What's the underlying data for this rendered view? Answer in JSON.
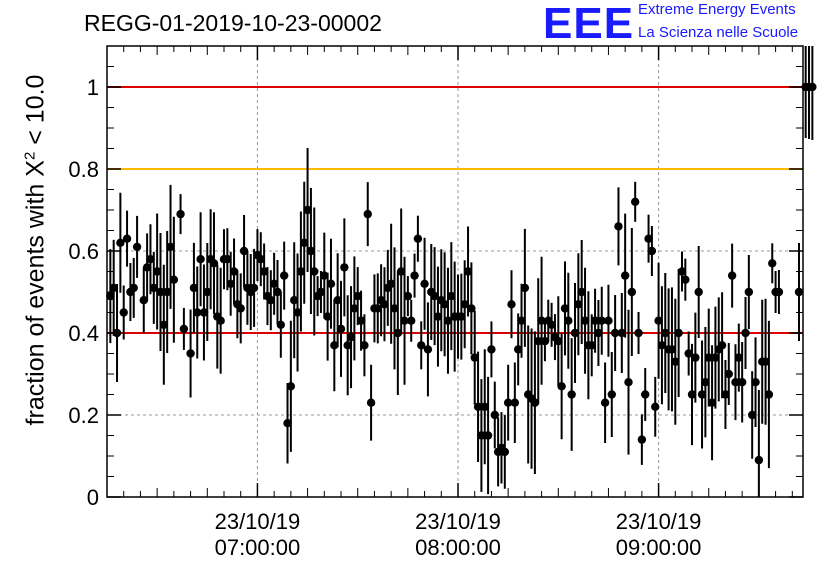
{
  "title": "REGG-01-2019-10-23-00002",
  "logo": {
    "mark": "EEE",
    "line1": "Extreme Energy Events",
    "line2": "La Scienza nelle Scuole"
  },
  "colors": {
    "threshold_red": "#dd0000",
    "threshold_orange": "#ffbb00",
    "points": "#000000",
    "grid": "#999999"
  },
  "chart_data": {
    "type": "scatter",
    "ylabel_main": "fraction of events with Χ",
    "ylabel_sup": "2",
    "ylabel_tail": " < 10.0",
    "ylim": [
      0,
      1.1
    ],
    "yticks": [
      0,
      0.2,
      0.4,
      0.6,
      0.8,
      1
    ],
    "ytick_labels": [
      "0",
      "0.2",
      "0.4",
      "0.6",
      "0.8",
      "1"
    ],
    "xlim_hours": [
      6.25,
      9.72
    ],
    "xticks": [
      {
        "h": 7,
        "date": "23/10/19",
        "time": "07:00:00"
      },
      {
        "h": 8,
        "date": "23/10/19",
        "time": "08:00:00"
      },
      {
        "h": 9,
        "date": "23/10/19",
        "time": "09:00:00"
      }
    ],
    "hlines": [
      {
        "y": 1.0,
        "color": "#dd0000"
      },
      {
        "y": 0.8,
        "color": "#ffbb00"
      },
      {
        "y": 0.4,
        "color": "#dd0000"
      }
    ],
    "grid": true,
    "points_hhmm_y": [
      [
        "06:16",
        0.49
      ],
      [
        "06:17",
        0.51
      ],
      [
        "06:18",
        0.4
      ],
      [
        "06:19",
        0.62
      ],
      [
        "06:20",
        0.45
      ],
      [
        "06:21",
        0.63
      ],
      [
        "06:22",
        0.5
      ],
      [
        "06:23",
        0.51
      ],
      [
        "06:24",
        0.61
      ],
      [
        "06:26",
        0.48
      ],
      [
        "06:27",
        0.56
      ],
      [
        "06:28",
        0.58
      ],
      [
        "06:29",
        0.51
      ],
      [
        "06:30",
        0.55
      ],
      [
        "06:31",
        0.5
      ],
      [
        "06:32",
        0.42
      ],
      [
        "06:33",
        0.5
      ],
      [
        "06:34",
        0.61
      ],
      [
        "06:35",
        0.53
      ],
      [
        "06:37",
        0.69
      ],
      [
        "06:38",
        0.41
      ],
      [
        "06:40",
        0.35
      ],
      [
        "06:41",
        0.51
      ],
      [
        "06:42",
        0.45
      ],
      [
        "06:43",
        0.58
      ],
      [
        "06:44",
        0.45
      ],
      [
        "06:45",
        0.5
      ],
      [
        "06:46",
        0.58
      ],
      [
        "06:47",
        0.57
      ],
      [
        "06:48",
        0.44
      ],
      [
        "06:49",
        0.43
      ],
      [
        "06:50",
        0.58
      ],
      [
        "06:51",
        0.58
      ],
      [
        "06:52",
        0.52
      ],
      [
        "06:53",
        0.55
      ],
      [
        "06:54",
        0.47
      ],
      [
        "06:55",
        0.46
      ],
      [
        "06:56",
        0.6
      ],
      [
        "06:57",
        0.51
      ],
      [
        "06:58",
        0.5
      ],
      [
        "06:59",
        0.51
      ],
      [
        "07:00",
        0.59
      ],
      [
        "07:01",
        0.58
      ],
      [
        "07:02",
        0.55
      ],
      [
        "07:03",
        0.49
      ],
      [
        "07:04",
        0.48
      ],
      [
        "07:05",
        0.52
      ],
      [
        "07:06",
        0.5
      ],
      [
        "07:07",
        0.42
      ],
      [
        "07:08",
        0.54
      ],
      [
        "07:09",
        0.18
      ],
      [
        "07:10",
        0.27
      ],
      [
        "07:11",
        0.48
      ],
      [
        "07:12",
        0.45
      ],
      [
        "07:13",
        0.55
      ],
      [
        "07:14",
        0.62
      ],
      [
        "07:15",
        0.7
      ],
      [
        "07:16",
        0.6
      ],
      [
        "07:17",
        0.55
      ],
      [
        "07:18",
        0.49
      ],
      [
        "07:19",
        0.5
      ],
      [
        "07:20",
        0.54
      ],
      [
        "07:21",
        0.44
      ],
      [
        "07:22",
        0.52
      ],
      [
        "07:23",
        0.37
      ],
      [
        "07:24",
        0.48
      ],
      [
        "07:25",
        0.41
      ],
      [
        "07:26",
        0.56
      ],
      [
        "07:27",
        0.37
      ],
      [
        "07:28",
        0.39
      ],
      [
        "07:29",
        0.46
      ],
      [
        "07:30",
        0.49
      ],
      [
        "07:31",
        0.43
      ],
      [
        "07:32",
        0.37
      ],
      [
        "07:33",
        0.69
      ],
      [
        "07:34",
        0.23
      ],
      [
        "07:35",
        0.46
      ],
      [
        "07:36",
        0.46
      ],
      [
        "07:37",
        0.48
      ],
      [
        "07:38",
        0.47
      ],
      [
        "07:39",
        0.51
      ],
      [
        "07:40",
        0.52
      ],
      [
        "07:41",
        0.46
      ],
      [
        "07:42",
        0.4
      ],
      [
        "07:43",
        0.55
      ],
      [
        "07:44",
        0.43
      ],
      [
        "07:45",
        0.49
      ],
      [
        "07:46",
        0.43
      ],
      [
        "07:47",
        0.54
      ],
      [
        "07:48",
        0.63
      ],
      [
        "07:49",
        0.37
      ],
      [
        "07:50",
        0.52
      ],
      [
        "07:51",
        0.36
      ],
      [
        "07:52",
        0.5
      ],
      [
        "07:53",
        0.49
      ],
      [
        "07:54",
        0.44
      ],
      [
        "07:55",
        0.48
      ],
      [
        "07:56",
        0.47
      ],
      [
        "07:57",
        0.43
      ],
      [
        "07:58",
        0.49
      ],
      [
        "07:59",
        0.44
      ],
      [
        "08:00",
        0.44
      ],
      [
        "08:01",
        0.44
      ],
      [
        "08:02",
        0.47
      ],
      [
        "08:03",
        0.55
      ],
      [
        "08:04",
        0.46
      ],
      [
        "08:05",
        0.34
      ],
      [
        "08:06",
        0.22
      ],
      [
        "08:07",
        0.15
      ],
      [
        "08:08",
        0.22
      ],
      [
        "08:09",
        0.15
      ],
      [
        "08:10",
        0.36
      ],
      [
        "08:11",
        0.2
      ],
      [
        "08:12",
        0.11
      ],
      [
        "08:13",
        0.12
      ],
      [
        "08:14",
        0.11
      ],
      [
        "08:15",
        0.23
      ],
      [
        "08:16",
        0.47
      ],
      [
        "08:17",
        0.23
      ],
      [
        "08:18",
        0.36
      ],
      [
        "08:19",
        0.43
      ],
      [
        "08:20",
        0.51
      ],
      [
        "08:21",
        0.25
      ],
      [
        "08:22",
        0.24
      ],
      [
        "08:23",
        0.23
      ],
      [
        "08:24",
        0.38
      ],
      [
        "08:25",
        0.43
      ],
      [
        "08:26",
        0.38
      ],
      [
        "08:27",
        0.43
      ],
      [
        "08:28",
        0.42
      ],
      [
        "08:29",
        0.39
      ],
      [
        "08:30",
        0.38
      ],
      [
        "08:31",
        0.27
      ],
      [
        "08:32",
        0.46
      ],
      [
        "08:33",
        0.43
      ],
      [
        "08:34",
        0.25
      ],
      [
        "08:35",
        0.4
      ],
      [
        "08:36",
        0.47
      ],
      [
        "08:37",
        0.5
      ],
      [
        "08:38",
        0.43
      ],
      [
        "08:39",
        0.37
      ],
      [
        "08:40",
        0.37
      ],
      [
        "08:41",
        0.43
      ],
      [
        "08:42",
        0.4
      ],
      [
        "08:43",
        0.43
      ],
      [
        "08:44",
        0.23
      ],
      [
        "08:45",
        0.43
      ],
      [
        "08:46",
        0.25
      ],
      [
        "08:47",
        0.4
      ],
      [
        "08:48",
        0.66
      ],
      [
        "08:49",
        0.4
      ],
      [
        "08:50",
        0.54
      ],
      [
        "08:51",
        0.28
      ],
      [
        "08:52",
        0.5
      ],
      [
        "08:53",
        0.72
      ],
      [
        "08:54",
        0.4
      ],
      [
        "08:55",
        0.14
      ],
      [
        "08:56",
        0.25
      ],
      [
        "08:57",
        0.63
      ],
      [
        "08:58",
        0.6
      ],
      [
        "08:59",
        0.22
      ],
      [
        "09:00",
        0.43
      ],
      [
        "09:01",
        0.37
      ],
      [
        "09:02",
        0.4
      ],
      [
        "09:03",
        0.36
      ],
      [
        "09:04",
        0.36
      ],
      [
        "09:05",
        0.33
      ],
      [
        "09:06",
        0.4
      ],
      [
        "09:07",
        0.55
      ],
      [
        "09:08",
        0.53
      ],
      [
        "09:09",
        0.35
      ],
      [
        "09:10",
        0.25
      ],
      [
        "09:11",
        0.34
      ],
      [
        "09:12",
        0.5
      ],
      [
        "09:13",
        0.25
      ],
      [
        "09:14",
        0.28
      ],
      [
        "09:15",
        0.34
      ],
      [
        "09:16",
        0.23
      ],
      [
        "09:17",
        0.34
      ],
      [
        "09:18",
        0.36
      ],
      [
        "09:19",
        0.37
      ],
      [
        "09:20",
        0.25
      ],
      [
        "09:21",
        0.3
      ],
      [
        "09:22",
        0.54
      ],
      [
        "09:23",
        0.28
      ],
      [
        "09:24",
        0.34
      ],
      [
        "09:25",
        0.28
      ],
      [
        "09:26",
        0.4
      ],
      [
        "09:27",
        0.5
      ],
      [
        "09:28",
        0.2
      ],
      [
        "09:29",
        0.28
      ],
      [
        "09:30",
        0.09
      ],
      [
        "09:31",
        0.33
      ],
      [
        "09:32",
        0.33
      ],
      [
        "09:33",
        0.25
      ],
      [
        "09:34",
        0.57
      ],
      [
        "09:35",
        0.5
      ],
      [
        "09:36",
        0.5
      ],
      [
        "09:42",
        0.5
      ],
      [
        "09:44",
        1.0
      ],
      [
        "09:45",
        1.0
      ],
      [
        "09:46",
        1.0
      ]
    ]
  }
}
